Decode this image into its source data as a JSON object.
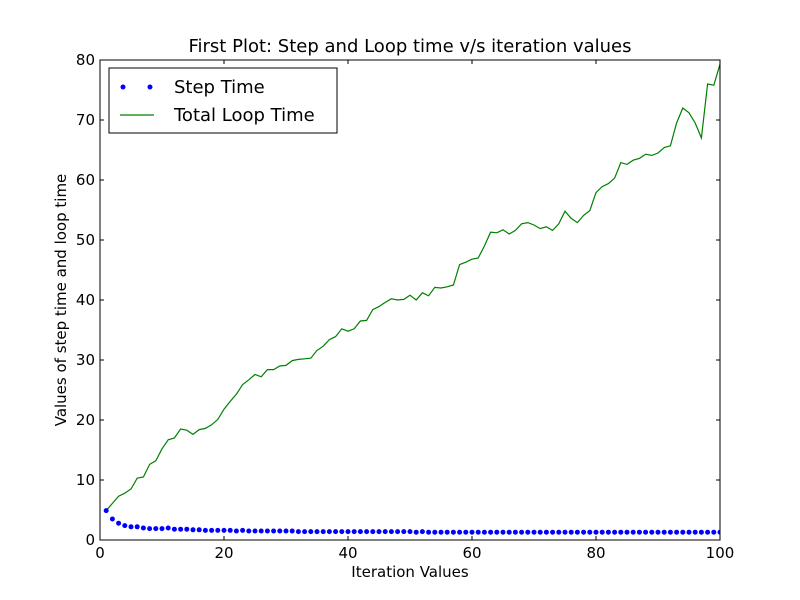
{
  "chart_data": {
    "type": "line",
    "title": "First Plot: Step and Loop time v/s iteration values",
    "xlabel": "Iteration Values",
    "ylabel": "Values of step time and loop time",
    "xlim": [
      0,
      100
    ],
    "ylim": [
      0,
      80
    ],
    "xticks": [
      0,
      20,
      40,
      60,
      80,
      100
    ],
    "yticks": [
      0,
      10,
      20,
      30,
      40,
      50,
      60,
      70,
      80
    ],
    "grid": false,
    "legend_position": "top-left",
    "series": [
      {
        "name": "Step Time",
        "style": "dots",
        "color": "#0000ff",
        "x": [
          1,
          2,
          3,
          4,
          5,
          6,
          7,
          8,
          9,
          10,
          11,
          12,
          13,
          14,
          15,
          16,
          17,
          18,
          19,
          20,
          21,
          22,
          23,
          24,
          25,
          26,
          27,
          28,
          29,
          30,
          31,
          32,
          33,
          34,
          35,
          36,
          37,
          38,
          39,
          40,
          41,
          42,
          43,
          44,
          45,
          46,
          47,
          48,
          49,
          50,
          51,
          52,
          53,
          54,
          55,
          56,
          57,
          58,
          59,
          60,
          61,
          62,
          63,
          64,
          65,
          66,
          67,
          68,
          69,
          70,
          71,
          72,
          73,
          74,
          75,
          76,
          77,
          78,
          79,
          80,
          81,
          82,
          83,
          84,
          85,
          86,
          87,
          88,
          89,
          90,
          91,
          92,
          93,
          94,
          95,
          96,
          97,
          98,
          99,
          100
        ],
        "y": [
          4.9,
          3.5,
          2.8,
          2.4,
          2.2,
          2.2,
          2.0,
          1.9,
          1.9,
          1.9,
          2.0,
          1.8,
          1.8,
          1.8,
          1.7,
          1.7,
          1.6,
          1.6,
          1.6,
          1.6,
          1.6,
          1.5,
          1.6,
          1.5,
          1.5,
          1.5,
          1.5,
          1.5,
          1.5,
          1.5,
          1.5,
          1.4,
          1.4,
          1.4,
          1.4,
          1.4,
          1.4,
          1.4,
          1.4,
          1.4,
          1.4,
          1.4,
          1.4,
          1.4,
          1.4,
          1.4,
          1.4,
          1.4,
          1.4,
          1.4,
          1.3,
          1.4,
          1.3,
          1.3,
          1.3,
          1.3,
          1.3,
          1.3,
          1.3,
          1.3,
          1.3,
          1.3,
          1.3,
          1.3,
          1.3,
          1.3,
          1.3,
          1.3,
          1.3,
          1.3,
          1.3,
          1.3,
          1.3,
          1.3,
          1.3,
          1.3,
          1.3,
          1.3,
          1.3,
          1.3,
          1.3,
          1.3,
          1.3,
          1.3,
          1.3,
          1.3,
          1.3,
          1.3,
          1.3,
          1.3,
          1.3,
          1.3,
          1.3,
          1.3,
          1.3,
          1.3,
          1.3,
          1.3,
          1.3,
          1.3
        ]
      },
      {
        "name": "Total Loop Time",
        "style": "line",
        "color": "#008000",
        "x": [
          1,
          2,
          3,
          4,
          5,
          6,
          7,
          8,
          9,
          10,
          11,
          12,
          13,
          14,
          15,
          16,
          17,
          18,
          19,
          20,
          21,
          22,
          23,
          24,
          25,
          26,
          27,
          28,
          29,
          30,
          31,
          32,
          33,
          34,
          35,
          36,
          37,
          38,
          39,
          40,
          41,
          42,
          43,
          44,
          45,
          46,
          47,
          48,
          49,
          50,
          51,
          52,
          53,
          54,
          55,
          56,
          57,
          58,
          59,
          60,
          61,
          62,
          63,
          64,
          65,
          66,
          67,
          68,
          69,
          70,
          71,
          72,
          73,
          74,
          75,
          76,
          77,
          78,
          79,
          80,
          81,
          82,
          83,
          84,
          85,
          86,
          87,
          88,
          89,
          90,
          91,
          92,
          93,
          94,
          95,
          96,
          97,
          98,
          99,
          100
        ],
        "y": [
          4.9,
          6.1,
          7.3,
          7.8,
          8.5,
          10.3,
          10.5,
          12.6,
          13.2,
          15.2,
          16.7,
          17.0,
          18.5,
          18.3,
          17.6,
          18.4,
          18.6,
          19.2,
          20.1,
          21.8,
          23.1,
          24.3,
          25.9,
          26.7,
          27.6,
          27.2,
          28.4,
          28.4,
          29.0,
          29.1,
          29.9,
          30.1,
          30.2,
          30.3,
          31.6,
          32.3,
          33.4,
          33.9,
          35.2,
          34.8,
          35.2,
          36.5,
          36.6,
          38.4,
          38.9,
          39.6,
          40.2,
          40.0,
          40.1,
          40.8,
          40.0,
          41.2,
          40.7,
          42.1,
          42.0,
          42.2,
          42.5,
          45.9,
          46.3,
          46.8,
          47.0,
          49.0,
          51.3,
          51.2,
          51.7,
          51.0,
          51.6,
          52.7,
          52.9,
          52.5,
          51.9,
          52.2,
          51.6,
          52.7,
          54.8,
          53.6,
          52.9,
          54.1,
          54.9,
          57.9,
          58.9,
          59.4,
          60.3,
          62.9,
          62.6,
          63.3,
          63.6,
          64.3,
          64.1,
          64.5,
          65.4,
          65.7,
          69.5,
          72.0,
          71.2,
          69.5,
          67.0,
          76.0,
          75.8,
          79.3
        ]
      }
    ]
  }
}
